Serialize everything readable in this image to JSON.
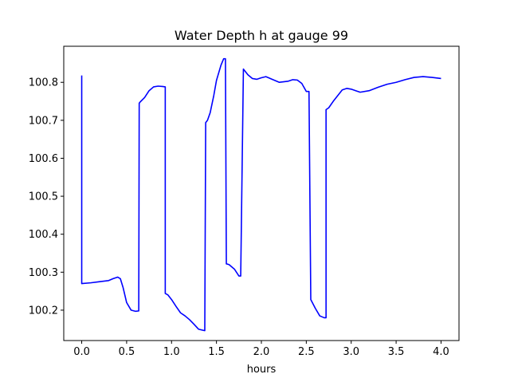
{
  "chart_data": {
    "type": "line",
    "title": "Water Depth h at gauge 99",
    "xlabel": "hours",
    "ylabel": "",
    "xlim": [
      -0.2,
      4.2
    ],
    "ylim": [
      100.12,
      100.895
    ],
    "xticks": [
      0.0,
      0.5,
      1.0,
      1.5,
      2.0,
      2.5,
      3.0,
      3.5,
      4.0
    ],
    "xtick_labels": [
      "0.0",
      "0.5",
      "1.0",
      "1.5",
      "2.0",
      "2.5",
      "3.0",
      "3.5",
      "4.0"
    ],
    "yticks": [
      100.2,
      100.3,
      100.4,
      100.5,
      100.6,
      100.7,
      100.8
    ],
    "ytick_labels": [
      "100.2",
      "100.3",
      "100.4",
      "100.5",
      "100.6",
      "100.7",
      "100.8"
    ],
    "grid": false,
    "series": [
      {
        "color": "#0000ff",
        "x": [
          0.0,
          0.0,
          0.1,
          0.2,
          0.3,
          0.35,
          0.4,
          0.43,
          0.46,
          0.5,
          0.55,
          0.6,
          0.635,
          0.64,
          0.65,
          0.7,
          0.75,
          0.8,
          0.85,
          0.9,
          0.93,
          0.93,
          0.96,
          1.0,
          1.05,
          1.1,
          1.15,
          1.2,
          1.25,
          1.3,
          1.37,
          1.38,
          1.4,
          1.43,
          1.47,
          1.5,
          1.55,
          1.58,
          1.6,
          1.61,
          1.64,
          1.7,
          1.75,
          1.77,
          1.8,
          1.85,
          1.9,
          1.95,
          2.0,
          2.05,
          2.08,
          2.1,
          2.2,
          2.3,
          2.35,
          2.4,
          2.45,
          2.5,
          2.53,
          2.55,
          2.6,
          2.65,
          2.7,
          2.72,
          2.72,
          2.75,
          2.8,
          2.9,
          2.95,
          3.0,
          3.05,
          3.1,
          3.2,
          3.3,
          3.4,
          3.5,
          3.6,
          3.7,
          3.8,
          3.9,
          4.0
        ],
        "y": [
          100.818,
          100.27,
          100.272,
          100.275,
          100.278,
          100.283,
          100.287,
          100.283,
          100.26,
          100.22,
          100.2,
          100.197,
          100.198,
          100.745,
          100.748,
          100.76,
          100.778,
          100.788,
          100.79,
          100.789,
          100.788,
          100.244,
          100.24,
          100.228,
          100.21,
          100.193,
          100.185,
          100.175,
          100.163,
          100.15,
          100.146,
          100.694,
          100.7,
          100.72,
          100.765,
          100.805,
          100.845,
          100.862,
          100.862,
          100.322,
          100.32,
          100.308,
          100.29,
          100.29,
          100.835,
          100.82,
          100.81,
          100.808,
          100.812,
          100.815,
          100.812,
          100.81,
          100.8,
          100.803,
          100.807,
          100.806,
          100.797,
          100.776,
          100.776,
          100.228,
          100.205,
          100.185,
          100.18,
          100.18,
          100.728,
          100.733,
          100.75,
          100.78,
          100.784,
          100.782,
          100.778,
          100.774,
          100.778,
          100.787,
          100.795,
          100.8,
          100.807,
          100.813,
          100.815,
          100.813,
          100.81
        ]
      }
    ]
  }
}
